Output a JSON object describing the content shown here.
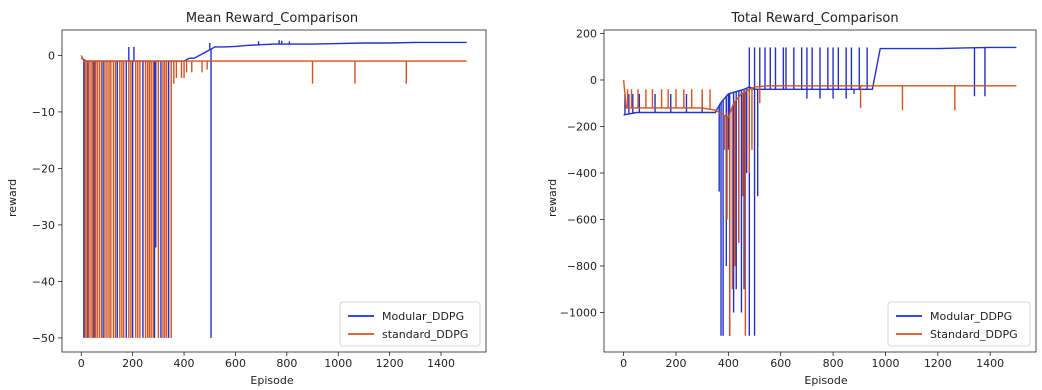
{
  "chart_data": [
    {
      "type": "line",
      "title": "Mean Reward_Comparison",
      "xlabel": "Episode",
      "ylabel": "reward",
      "xlim": [
        -75,
        1575
      ],
      "ylim": [
        -52.5,
        4.5
      ],
      "xticks": [
        0,
        200,
        400,
        600,
        800,
        1000,
        1200,
        1400
      ],
      "yticks": [
        0,
        -10,
        -20,
        -30,
        -40,
        -50
      ],
      "ytick_labels": [
        "0",
        "−10",
        "−20",
        "−30",
        "−40",
        "−50"
      ],
      "grid": false,
      "legend_position": "bottom-right",
      "series": [
        {
          "name": "Modular_DDPG",
          "color": "#2132c9",
          "points": [
            [
              0,
              -0.5
            ],
            [
              20,
              -1
            ],
            [
              40,
              -1
            ],
            [
              60,
              -1
            ],
            [
              80,
              -1
            ],
            [
              100,
              -1
            ],
            [
              120,
              -1
            ],
            [
              140,
              -1
            ],
            [
              160,
              -1
            ],
            [
              180,
              -1
            ],
            [
              200,
              -1
            ],
            [
              220,
              -1
            ],
            [
              240,
              -1
            ],
            [
              260,
              -1
            ],
            [
              280,
              -1
            ],
            [
              300,
              -1
            ],
            [
              320,
              -1
            ],
            [
              340,
              -1
            ],
            [
              360,
              -1
            ],
            [
              380,
              -1
            ],
            [
              400,
              -1
            ],
            [
              420,
              -0.5
            ],
            [
              440,
              -0.5
            ],
            [
              460,
              0
            ],
            [
              480,
              0.5
            ],
            [
              500,
              1
            ],
            [
              520,
              1.5
            ],
            [
              560,
              1.5
            ],
            [
              600,
              1.6
            ],
            [
              650,
              1.8
            ],
            [
              700,
              1.9
            ],
            [
              750,
              2
            ],
            [
              800,
              2
            ],
            [
              900,
              2
            ],
            [
              1000,
              2.1
            ],
            [
              1100,
              2.2
            ],
            [
              1200,
              2.2
            ],
            [
              1300,
              2.3
            ],
            [
              1400,
              2.3
            ],
            [
              1500,
              2.3
            ]
          ],
          "spikes": [
            [
              10,
              -50
            ],
            [
              25,
              -50
            ],
            [
              50,
              -50
            ],
            [
              85,
              -50
            ],
            [
              140,
              -50
            ],
            [
              175,
              -50
            ],
            [
              200,
              -50
            ],
            [
              240,
              -50
            ],
            [
              285,
              -50
            ],
            [
              290,
              -34
            ],
            [
              310,
              -50
            ],
            [
              340,
              -50
            ],
            [
              505,
              -50
            ],
            [
              185,
              1.5
            ],
            [
              205,
              1.5
            ],
            [
              500,
              2.2
            ],
            [
              690,
              2.5
            ],
            [
              770,
              2.7
            ],
            [
              780,
              2.6
            ],
            [
              810,
              2.5
            ]
          ]
        },
        {
          "name": "standard_DDPG",
          "color": "#d4521f",
          "points": [
            [
              0,
              0
            ],
            [
              10,
              -1
            ],
            [
              50,
              -1
            ],
            [
              100,
              -1
            ],
            [
              150,
              -1
            ],
            [
              200,
              -1
            ],
            [
              250,
              -1
            ],
            [
              300,
              -1
            ],
            [
              350,
              -1
            ],
            [
              400,
              -1
            ],
            [
              450,
              -1
            ],
            [
              500,
              -1
            ],
            [
              600,
              -1
            ],
            [
              700,
              -1
            ],
            [
              800,
              -1
            ],
            [
              900,
              -1
            ],
            [
              1000,
              -1
            ],
            [
              1100,
              -1
            ],
            [
              1200,
              -1
            ],
            [
              1300,
              -1
            ],
            [
              1400,
              -1
            ],
            [
              1500,
              -1
            ]
          ],
          "spikes": [
            [
              15,
              -50
            ],
            [
              22,
              -50
            ],
            [
              30,
              -50
            ],
            [
              38,
              -50
            ],
            [
              45,
              -50
            ],
            [
              55,
              -50
            ],
            [
              62,
              -50
            ],
            [
              70,
              -50
            ],
            [
              78,
              -50
            ],
            [
              92,
              -50
            ],
            [
              100,
              -50
            ],
            [
              108,
              -50
            ],
            [
              115,
              -50
            ],
            [
              125,
              -50
            ],
            [
              133,
              -50
            ],
            [
              150,
              -50
            ],
            [
              158,
              -50
            ],
            [
              165,
              -50
            ],
            [
              185,
              -50
            ],
            [
              193,
              -50
            ],
            [
              212,
              -50
            ],
            [
              220,
              -50
            ],
            [
              228,
              -50
            ],
            [
              250,
              -50
            ],
            [
              258,
              -50
            ],
            [
              265,
              -50
            ],
            [
              272,
              -50
            ],
            [
              280,
              -50
            ],
            [
              300,
              -50
            ],
            [
              318,
              -50
            ],
            [
              325,
              -50
            ],
            [
              332,
              -50
            ],
            [
              350,
              -50
            ],
            [
              360,
              -5
            ],
            [
              370,
              -4
            ],
            [
              390,
              -4
            ],
            [
              400,
              -4
            ],
            [
              410,
              -3
            ],
            [
              430,
              -3
            ],
            [
              470,
              -3
            ],
            [
              490,
              -2.5
            ],
            [
              900,
              -5
            ],
            [
              1065,
              -5
            ],
            [
              1265,
              -5
            ]
          ]
        }
      ]
    },
    {
      "type": "line",
      "title": "Total Reward_Comparison",
      "xlabel": "Episode",
      "ylabel": "reward",
      "xlim": [
        -75,
        1575
      ],
      "ylim": [
        -1170,
        215
      ],
      "xticks": [
        0,
        200,
        400,
        600,
        800,
        1000,
        1200,
        1400
      ],
      "yticks": [
        200,
        0,
        -200,
        -400,
        -600,
        -800,
        -1000
      ],
      "ytick_labels": [
        "200",
        "0",
        "−200",
        "−400",
        "−600",
        "−800",
        "−1000"
      ],
      "grid": false,
      "legend_position": "bottom-right",
      "series": [
        {
          "name": "Modular_DDPG",
          "color": "#2132c9",
          "points": [
            [
              0,
              -150
            ],
            [
              50,
              -140
            ],
            [
              100,
              -140
            ],
            [
              150,
              -140
            ],
            [
              200,
              -140
            ],
            [
              250,
              -140
            ],
            [
              300,
              -140
            ],
            [
              350,
              -140
            ],
            [
              370,
              -100
            ],
            [
              400,
              -60
            ],
            [
              430,
              -50
            ],
            [
              460,
              -40
            ],
            [
              480,
              -30
            ],
            [
              500,
              -40
            ],
            [
              520,
              -40
            ],
            [
              560,
              -40
            ],
            [
              600,
              -40
            ],
            [
              650,
              -40
            ],
            [
              700,
              -40
            ],
            [
              750,
              -40
            ],
            [
              800,
              -40
            ],
            [
              850,
              -40
            ],
            [
              900,
              -40
            ],
            [
              950,
              -40
            ],
            [
              980,
              135
            ],
            [
              1100,
              135
            ],
            [
              1200,
              135
            ],
            [
              1300,
              138
            ],
            [
              1400,
              140
            ],
            [
              1500,
              140
            ]
          ],
          "spikes": [
            [
              5,
              -60
            ],
            [
              20,
              -60
            ],
            [
              35,
              -60
            ],
            [
              60,
              -60
            ],
            [
              120,
              -60
            ],
            [
              180,
              -60
            ],
            [
              240,
              -60
            ],
            [
              300,
              -60
            ],
            [
              365,
              -480
            ],
            [
              372,
              -1100
            ],
            [
              380,
              -1100
            ],
            [
              392,
              -800
            ],
            [
              400,
              -300
            ],
            [
              405,
              -1100
            ],
            [
              420,
              -1000
            ],
            [
              430,
              -900
            ],
            [
              440,
              -700
            ],
            [
              450,
              -1000
            ],
            [
              460,
              -900
            ],
            [
              470,
              -400
            ],
            [
              480,
              -1100
            ],
            [
              500,
              -1100
            ],
            [
              512,
              -500
            ],
            [
              480,
              140
            ],
            [
              500,
              140
            ],
            [
              520,
              140
            ],
            [
              540,
              140
            ],
            [
              560,
              140
            ],
            [
              580,
              140
            ],
            [
              610,
              140
            ],
            [
              620,
              140
            ],
            [
              650,
              140
            ],
            [
              680,
              140
            ],
            [
              700,
              140
            ],
            [
              720,
              140
            ],
            [
              750,
              140
            ],
            [
              780,
              140
            ],
            [
              800,
              140
            ],
            [
              820,
              140
            ],
            [
              850,
              140
            ],
            [
              870,
              140
            ],
            [
              900,
              140
            ],
            [
              930,
              140
            ],
            [
              700,
              -80
            ],
            [
              750,
              -80
            ],
            [
              800,
              -80
            ],
            [
              850,
              -80
            ],
            [
              880,
              -60
            ],
            [
              1340,
              -70
            ],
            [
              1380,
              -70
            ],
            [
              1490,
              140
            ]
          ]
        },
        {
          "name": "Standard_DDPG",
          "color": "#d4521f",
          "points": [
            [
              0,
              0
            ],
            [
              10,
              -120
            ],
            [
              50,
              -120
            ],
            [
              100,
              -120
            ],
            [
              150,
              -120
            ],
            [
              200,
              -120
            ],
            [
              250,
              -120
            ],
            [
              300,
              -120
            ],
            [
              350,
              -130
            ],
            [
              380,
              -150
            ],
            [
              400,
              -160
            ],
            [
              420,
              -100
            ],
            [
              450,
              -60
            ],
            [
              480,
              -40
            ],
            [
              500,
              -30
            ],
            [
              550,
              -25
            ],
            [
              600,
              -25
            ],
            [
              700,
              -25
            ],
            [
              800,
              -25
            ],
            [
              900,
              -25
            ],
            [
              1000,
              -25
            ],
            [
              1100,
              -25
            ],
            [
              1200,
              -25
            ],
            [
              1300,
              -25
            ],
            [
              1400,
              -25
            ],
            [
              1500,
              -25
            ]
          ],
          "spikes": [
            [
              15,
              -40
            ],
            [
              30,
              -40
            ],
            [
              55,
              -40
            ],
            [
              85,
              -40
            ],
            [
              110,
              -40
            ],
            [
              145,
              -40
            ],
            [
              170,
              -40
            ],
            [
              200,
              -40
            ],
            [
              230,
              -40
            ],
            [
              260,
              -40
            ],
            [
              300,
              -40
            ],
            [
              330,
              -40
            ],
            [
              385,
              -300
            ],
            [
              395,
              -600
            ],
            [
              405,
              -1100
            ],
            [
              415,
              -900
            ],
            [
              425,
              -800
            ],
            [
              440,
              -700
            ],
            [
              455,
              -500
            ],
            [
              465,
              -1100
            ],
            [
              480,
              -400
            ],
            [
              490,
              -300
            ],
            [
              520,
              -100
            ],
            [
              905,
              -120
            ],
            [
              1065,
              -130
            ],
            [
              1265,
              -130
            ]
          ]
        }
      ]
    }
  ]
}
